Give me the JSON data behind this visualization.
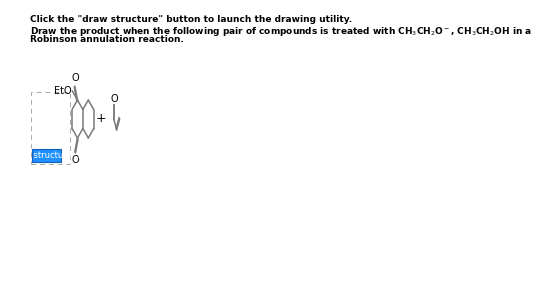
{
  "bg_color": "#ffffff",
  "text_color": "#000000",
  "struct_color": "#7a7a7a",
  "button_bg": "#1e90ff",
  "button_text_color": "#ffffff",
  "button_text": "draw structure ...",
  "line1": "Click the \"draw structure\" button to launch the drawing utility.",
  "line2": "Draw the product when the following pair of compounds is treated with CH$_3$CH$_2$O$^-$, CH$_3$CH$_2$OH in a",
  "line3": "Robinson annulation reaction.",
  "reagent_label": "EtO",
  "plus_sign": "+",
  "fontsize_text": 6.5,
  "struct_lw": 1.1
}
